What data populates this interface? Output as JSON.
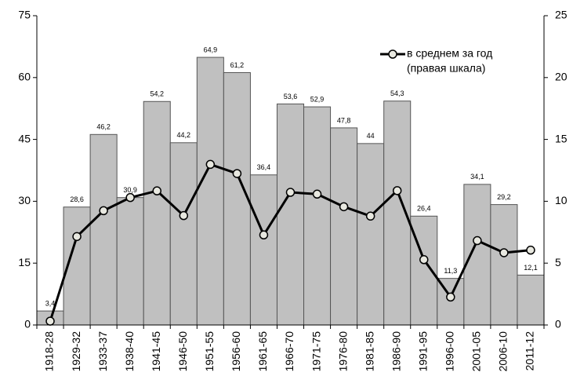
{
  "chart_data": {
    "type": "bar-line",
    "categories": [
      "1918-28",
      "1929-32",
      "1933-37",
      "1938-40",
      "1941-45",
      "1946-50",
      "1951-55",
      "1956-60",
      "1961-65",
      "1966-70",
      "1971-75",
      "1976-80",
      "1981-85",
      "1986-90",
      "1991-95",
      "1996-00",
      "2001-05",
      "2006-10",
      "2011-12"
    ],
    "series": [
      {
        "type": "bar",
        "color": "#c0c0c0",
        "values": [
          3.4,
          28.6,
          46.2,
          30.9,
          54.2,
          44.2,
          64.9,
          61.2,
          36.4,
          53.6,
          52.9,
          47.8,
          44,
          54.3,
          26.4,
          11.3,
          34.1,
          29.2,
          12.1
        ],
        "value_labels": [
          "3,4",
          "28,6",
          "46,2",
          "30,9",
          "54,2",
          "44,2",
          "64,9",
          "61,2",
          "36,4",
          "53,6",
          "52,9",
          "47,8",
          "44",
          "54,3",
          "26,4",
          "11,3",
          "34,1",
          "29,2",
          "12,1"
        ]
      },
      {
        "type": "line",
        "name": "в среднем за год",
        "axis": "y2",
        "color": "#000000",
        "values": [
          0.31,
          7.15,
          9.24,
          10.3,
          10.84,
          8.84,
          12.98,
          12.24,
          7.28,
          10.72,
          10.58,
          9.56,
          8.8,
          10.86,
          5.28,
          2.26,
          6.82,
          5.84,
          6.05
        ]
      }
    ],
    "y2_label": "(правая шкала)",
    "ylim": [
      0,
      75
    ],
    "yticks": [
      0,
      15,
      30,
      45,
      60,
      75
    ],
    "y2lim": [
      0,
      25
    ],
    "y2ticks": [
      0,
      5,
      10,
      15,
      20,
      25
    ],
    "grid": false,
    "legend": "upper right"
  }
}
